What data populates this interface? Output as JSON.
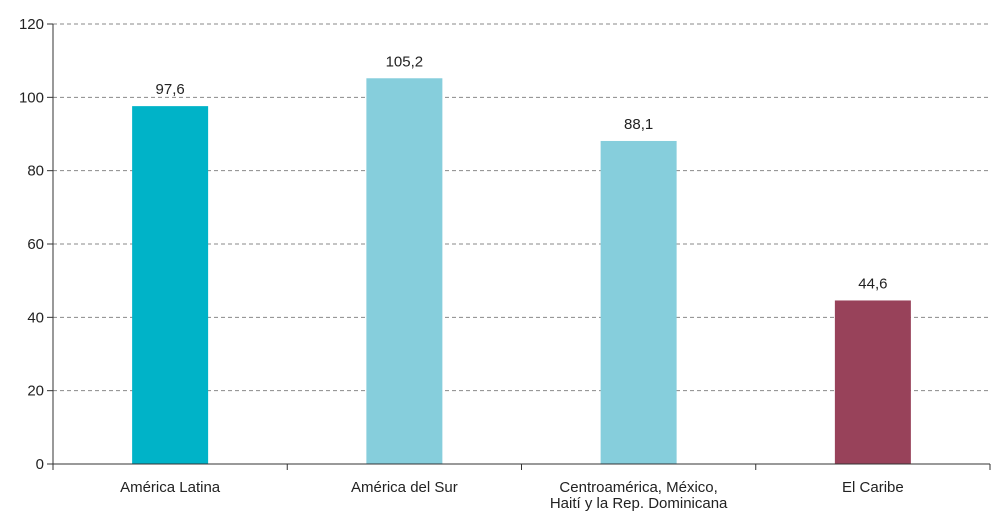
{
  "chart_data": {
    "type": "bar",
    "categories": [
      [
        "América Latina"
      ],
      [
        "América del Sur"
      ],
      [
        "Centroamérica, México,",
        "Haití y la Rep. Dominicana"
      ],
      [
        "El Caribe"
      ]
    ],
    "values": [
      97.6,
      105.2,
      88.1,
      44.6
    ],
    "value_labels": [
      "97,6",
      "105,2",
      "88,1",
      "44,6"
    ],
    "bar_colors": [
      "#00b3c8",
      "#86cedc",
      "#86cedc",
      "#98425a"
    ],
    "ylim": [
      0,
      120
    ],
    "yticks": [
      0,
      20,
      40,
      60,
      80,
      100,
      120
    ],
    "ytick_labels": [
      "0",
      "20",
      "40",
      "60",
      "80",
      "100",
      "120"
    ],
    "grid": true,
    "legend": "none",
    "title": "",
    "xlabel": "",
    "ylabel": ""
  }
}
